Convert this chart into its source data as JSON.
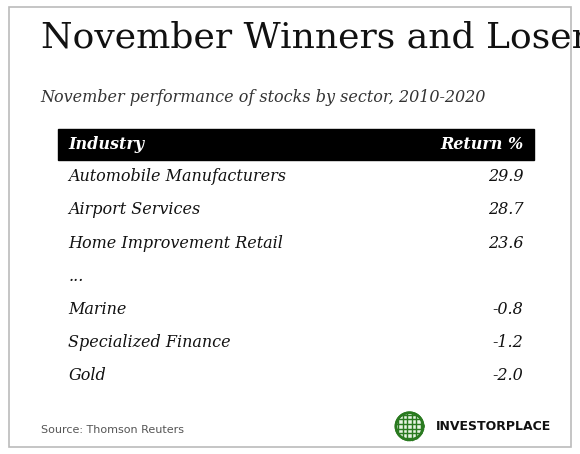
{
  "title": "November Winners and Losers",
  "subtitle": "November performance of stocks by sector, 2010-2020",
  "header": [
    "Industry",
    "Return %"
  ],
  "rows": [
    [
      "Automobile Manufacturers",
      "29.9"
    ],
    [
      "Airport Services",
      "28.7"
    ],
    [
      "Home Improvement Retail",
      "23.6"
    ],
    [
      "...",
      ""
    ],
    [
      "Marine",
      "-0.8"
    ],
    [
      "Specialized Finance",
      "-1.2"
    ],
    [
      "Gold",
      "-2.0"
    ]
  ],
  "source": "Source: Thomson Reuters",
  "logo_text": "INVESTORPLACE",
  "bg_color": "#ffffff",
  "border_color": "#bbbbbb",
  "header_bg": "#000000",
  "header_fg": "#ffffff",
  "row_fg": "#111111",
  "title_fontsize": 26,
  "subtitle_fontsize": 11.5,
  "table_fontsize": 11.5,
  "source_fontsize": 8,
  "logo_fontsize": 9
}
